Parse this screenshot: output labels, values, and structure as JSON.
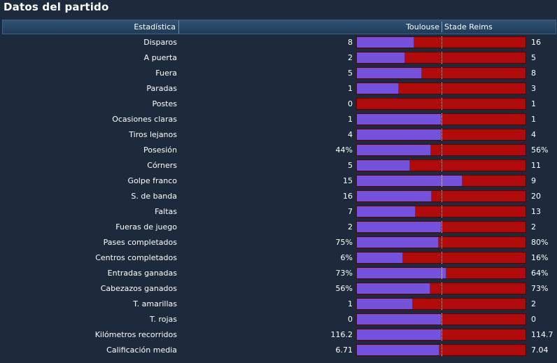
{
  "panel": {
    "title": "Datos del partido",
    "header": {
      "stat": "Estadística",
      "home_team": "Toulouse",
      "away_team": "Stade Reims"
    }
  },
  "colors": {
    "home": "#7452de",
    "away": "#b00a0a",
    "background": "#1c2a3b",
    "header": "#274866"
  },
  "stats": [
    {
      "label": "Disparos",
      "home": "8",
      "away": "16",
      "home_share": 0.34
    },
    {
      "label": "A puerta",
      "home": "2",
      "away": "5",
      "home_share": 0.285
    },
    {
      "label": "Fuera",
      "home": "5",
      "away": "8",
      "home_share": 0.385
    },
    {
      "label": "Paradas",
      "home": "1",
      "away": "3",
      "home_share": 0.25
    },
    {
      "label": "Postes",
      "home": "0",
      "away": "1",
      "home_share": 0.0
    },
    {
      "label": "Ocasiones claras",
      "home": "1",
      "away": "1",
      "home_share": 0.5
    },
    {
      "label": "Tiros lejanos",
      "home": "4",
      "away": "4",
      "home_share": 0.5
    },
    {
      "label": "Posesión",
      "home": "44%",
      "away": "56%",
      "home_share": 0.44
    },
    {
      "label": "Córners",
      "home": "5",
      "away": "11",
      "home_share": 0.315
    },
    {
      "label": "Golpe franco",
      "home": "15",
      "away": "9",
      "home_share": 0.625
    },
    {
      "label": "S. de banda",
      "home": "16",
      "away": "20",
      "home_share": 0.445
    },
    {
      "label": "Faltas",
      "home": "7",
      "away": "13",
      "home_share": 0.35
    },
    {
      "label": "Fueras de juego",
      "home": "2",
      "away": "2",
      "home_share": 0.5
    },
    {
      "label": "Pases completados",
      "home": "75%",
      "away": "80%",
      "home_share": 0.484
    },
    {
      "label": "Centros completados",
      "home": "6%",
      "away": "16%",
      "home_share": 0.273
    },
    {
      "label": "Entradas ganadas",
      "home": "73%",
      "away": "64%",
      "home_share": 0.533
    },
    {
      "label": "Cabezazos ganados",
      "home": "56%",
      "away": "73%",
      "home_share": 0.434
    },
    {
      "label": "T. amarillas",
      "home": "1",
      "away": "2",
      "home_share": 0.333
    },
    {
      "label": "T. rojas",
      "home": "0",
      "away": "0",
      "home_share": 0.5
    },
    {
      "label": "Kilómetros recorridos",
      "home": "116.2",
      "away": "114.7",
      "home_share": 0.503
    },
    {
      "label": "Calificación media",
      "home": "6.71",
      "away": "7.04",
      "home_share": 0.488
    }
  ]
}
